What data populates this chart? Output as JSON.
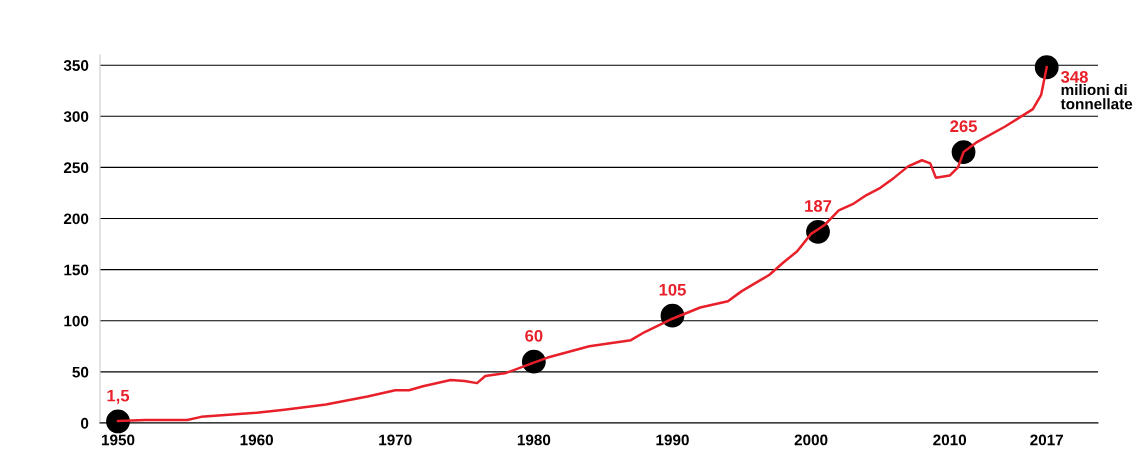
{
  "chart_data": {
    "type": "line",
    "xlim": [
      1948.7,
      2020.7
    ],
    "ylim": [
      0,
      360
    ],
    "xticks": [
      1950,
      1960,
      1970,
      1980,
      1990,
      2000,
      2010,
      2017
    ],
    "yticks": [
      0,
      50,
      100,
      150,
      200,
      250,
      300,
      350
    ],
    "grid": "y",
    "marker": "none",
    "line_style": "solid",
    "series": [
      {
        "color": "#e8202a",
        "x": [
          1950,
          1952,
          1955,
          1956,
          1960,
          1962,
          1965,
          1968,
          1970,
          1971,
          1972,
          1974,
          1975,
          1975.9,
          1976.5,
          1978,
          1980,
          1981,
          1984,
          1987,
          1988,
          1990,
          1992,
          1994,
          1995,
          1997,
          1998,
          1999,
          2000,
          2001,
          2002,
          2003,
          2004,
          2005,
          2006,
          2007,
          2008,
          2008.6,
          2009,
          2010,
          2010.6,
          2011,
          2012,
          2014,
          2016,
          2016.6,
          2017
        ],
        "values": [
          2,
          3,
          3,
          6,
          10,
          13,
          18,
          26,
          32,
          32,
          36,
          42,
          41,
          39,
          46,
          49,
          59,
          64,
          75,
          81,
          89,
          102,
          113,
          119,
          129,
          145,
          157,
          168,
          185,
          194,
          208,
          214,
          223,
          230,
          240,
          251,
          257,
          254,
          240,
          242,
          250,
          265,
          275,
          290,
          307,
          321,
          348
        ]
      },
      {
        "type": "scatter",
        "color": "#000000",
        "marker": "circle",
        "x": [
          1950,
          1980,
          1990,
          2000.5,
          2011,
          2017
        ],
        "values": [
          1.5,
          60,
          105,
          187,
          265,
          348
        ],
        "value_labels": [
          "1,5",
          "60",
          "105",
          "187",
          "265",
          "348"
        ]
      }
    ],
    "annotations": [
      {
        "text": "milioni di\ntonnellate",
        "x": 2017,
        "y": 348
      }
    ]
  }
}
